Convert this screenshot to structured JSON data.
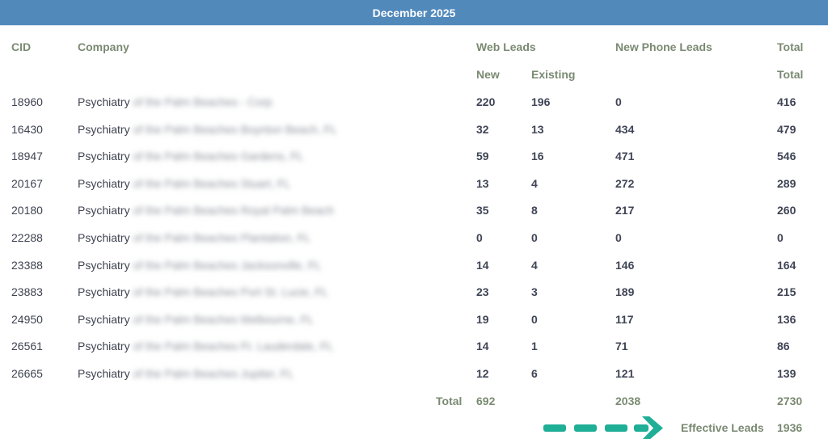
{
  "banner": {
    "title": "December 2025"
  },
  "headers": {
    "row1": {
      "cid": "CID",
      "company": "Company",
      "web_leads": "Web Leads",
      "phone_leads": "New Phone Leads",
      "total": "Total"
    },
    "row2": {
      "new": "New",
      "existing": "Existing",
      "total": "Total"
    }
  },
  "rows": [
    {
      "cid": "18960",
      "company": "Psychiatry",
      "company_suffix": "of the Palm Beaches - Corp",
      "new": "220",
      "existing": "196",
      "phone": "0",
      "total": "416"
    },
    {
      "cid": "16430",
      "company": "Psychiatry",
      "company_suffix": "of the Palm Beaches Boynton Beach, FL",
      "new": "32",
      "existing": "13",
      "phone": "434",
      "total": "479"
    },
    {
      "cid": "18947",
      "company": "Psychiatry",
      "company_suffix": "of the Palm Beaches Gardens, FL",
      "new": "59",
      "existing": "16",
      "phone": "471",
      "total": "546"
    },
    {
      "cid": "20167",
      "company": "Psychiatry",
      "company_suffix": "of the Palm Beaches Stuart, FL",
      "new": "13",
      "existing": "4",
      "phone": "272",
      "total": "289"
    },
    {
      "cid": "20180",
      "company": "Psychiatry",
      "company_suffix": "of the Palm Beaches Royal Palm Beach",
      "new": "35",
      "existing": "8",
      "phone": "217",
      "total": "260"
    },
    {
      "cid": "22288",
      "company": "Psychiatry",
      "company_suffix": "of the Palm Beaches Plantation, FL",
      "new": "0",
      "existing": "0",
      "phone": "0",
      "total": "0"
    },
    {
      "cid": "23388",
      "company": "Psychiatry",
      "company_suffix": "of the Palm Beaches Jacksonville, FL",
      "new": "14",
      "existing": "4",
      "phone": "146",
      "total": "164"
    },
    {
      "cid": "23883",
      "company": "Psychiatry",
      "company_suffix": "of the Palm Beaches Port St. Lucie, FL",
      "new": "23",
      "existing": "3",
      "phone": "189",
      "total": "215"
    },
    {
      "cid": "24950",
      "company": "Psychiatry",
      "company_suffix": "of the Palm Beaches Melbourne, FL",
      "new": "19",
      "existing": "0",
      "phone": "117",
      "total": "136"
    },
    {
      "cid": "26561",
      "company": "Psychiatry",
      "company_suffix": "of the Palm Beaches Ft. Lauderdale, FL",
      "new": "14",
      "existing": "1",
      "phone": "71",
      "total": "86"
    },
    {
      "cid": "26665",
      "company": "Psychiatry",
      "company_suffix": "of the Palm Beaches Jupiter, FL",
      "new": "12",
      "existing": "6",
      "phone": "121",
      "total": "139"
    }
  ],
  "totals": {
    "label": "Total",
    "web_new": "692",
    "phone": "2038",
    "total": "2730"
  },
  "effective": {
    "label": "Effective Leads",
    "value": "1936"
  },
  "colors": {
    "banner": "#5189bb",
    "header_text": "#7a8a72",
    "arrow": "#1fae96",
    "value_text": "#3f4556"
  }
}
